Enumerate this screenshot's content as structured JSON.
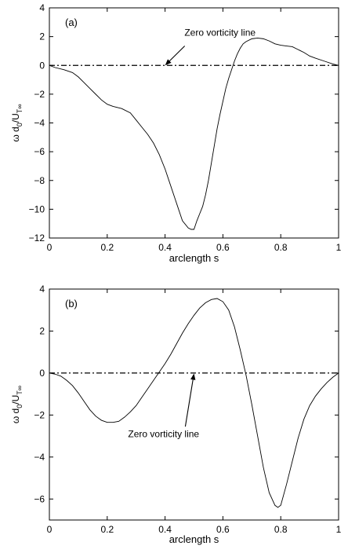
{
  "chart_data": [
    {
      "type": "line",
      "panel_label": "(a)",
      "xlabel": "arclength s",
      "ylabel": {
        "base": "ω d",
        "sub0": "0",
        "slash": "/U",
        "subT": "T∞"
      },
      "xlim": [
        0,
        1
      ],
      "ylim": [
        -12,
        4
      ],
      "xticks": [
        0,
        0.2,
        0.4,
        0.6,
        0.8,
        1
      ],
      "xtick_labels": [
        "0",
        "0.2",
        "0.4",
        "0.6",
        "0.8",
        "1"
      ],
      "yticks": [
        -12,
        -10,
        -8,
        -6,
        -4,
        -2,
        0,
        2,
        4
      ],
      "ytick_labels": [
        "−12",
        "−10",
        "−8",
        "−6",
        "−4",
        "−2",
        "0",
        "2",
        "4"
      ],
      "zero_line_y": 0,
      "annotation": {
        "text": "Zero vorticity line",
        "text_pos": [
          0.59,
          2.05
        ],
        "arrow_from": [
          0.468,
          1.35
        ],
        "arrow_to": [
          0.4,
          0.0
        ]
      },
      "series": [
        {
          "x": [
            0,
            0.02,
            0.05,
            0.08,
            0.1,
            0.12,
            0.14,
            0.16,
            0.18,
            0.2,
            0.22,
            0.25,
            0.28,
            0.3,
            0.32,
            0.34,
            0.36,
            0.38,
            0.4,
            0.42,
            0.44,
            0.46,
            0.48,
            0.49,
            0.5,
            0.51,
            0.52,
            0.53,
            0.54,
            0.55,
            0.56,
            0.57,
            0.58,
            0.59,
            0.6,
            0.61,
            0.62,
            0.63,
            0.64,
            0.65,
            0.66,
            0.67,
            0.68,
            0.7,
            0.72,
            0.74,
            0.76,
            0.78,
            0.8,
            0.82,
            0.84,
            0.86,
            0.88,
            0.9,
            0.92,
            0.95,
            0.98,
            1.0
          ],
          "y": [
            0,
            -0.15,
            -0.3,
            -0.5,
            -0.8,
            -1.2,
            -1.6,
            -2.0,
            -2.4,
            -2.7,
            -2.85,
            -3.0,
            -3.3,
            -3.8,
            -4.3,
            -4.8,
            -5.4,
            -6.2,
            -7.2,
            -8.4,
            -9.6,
            -10.8,
            -11.3,
            -11.4,
            -11.4,
            -10.8,
            -10.3,
            -9.8,
            -9.0,
            -8.0,
            -6.8,
            -5.6,
            -4.4,
            -3.4,
            -2.5,
            -1.6,
            -0.9,
            -0.3,
            0.3,
            0.8,
            1.2,
            1.5,
            1.65,
            1.85,
            1.9,
            1.85,
            1.7,
            1.5,
            1.4,
            1.35,
            1.3,
            1.1,
            0.9,
            0.65,
            0.5,
            0.3,
            0.1,
            0
          ]
        }
      ]
    },
    {
      "type": "line",
      "panel_label": "(b)",
      "xlabel": "arclength s",
      "ylabel": {
        "base": "ω d",
        "sub0": "0",
        "slash": "/U",
        "subT": "T∞"
      },
      "xlim": [
        0,
        1
      ],
      "ylim": [
        -7,
        4
      ],
      "xticks": [
        0,
        0.2,
        0.4,
        0.6,
        0.8,
        1
      ],
      "xtick_labels": [
        "0",
        "0.2",
        "0.4",
        "0.6",
        "0.8",
        "1"
      ],
      "yticks": [
        -6,
        -4,
        -2,
        0,
        2,
        4
      ],
      "ytick_labels": [
        "−6",
        "−4",
        "−2",
        "0",
        "2",
        "4"
      ],
      "zero_line_y": 0,
      "annotation": {
        "text": "Zero vorticity line",
        "text_pos": [
          0.395,
          -3.05
        ],
        "arrow_from": [
          0.47,
          -2.55
        ],
        "arrow_to": [
          0.5,
          -0.02
        ]
      },
      "series": [
        {
          "x": [
            0,
            0.02,
            0.04,
            0.06,
            0.08,
            0.1,
            0.12,
            0.14,
            0.16,
            0.18,
            0.2,
            0.22,
            0.24,
            0.26,
            0.28,
            0.3,
            0.32,
            0.34,
            0.36,
            0.38,
            0.4,
            0.42,
            0.44,
            0.46,
            0.48,
            0.5,
            0.52,
            0.54,
            0.56,
            0.58,
            0.6,
            0.62,
            0.64,
            0.66,
            0.68,
            0.7,
            0.72,
            0.74,
            0.76,
            0.78,
            0.79,
            0.8,
            0.82,
            0.84,
            0.86,
            0.88,
            0.9,
            0.92,
            0.94,
            0.96,
            0.98,
            1.0
          ],
          "y": [
            0,
            -0.05,
            -0.15,
            -0.35,
            -0.6,
            -0.95,
            -1.35,
            -1.75,
            -2.05,
            -2.25,
            -2.35,
            -2.35,
            -2.3,
            -2.1,
            -1.85,
            -1.55,
            -1.15,
            -0.75,
            -0.35,
            0.05,
            0.45,
            0.9,
            1.4,
            1.9,
            2.35,
            2.75,
            3.1,
            3.35,
            3.5,
            3.55,
            3.4,
            3.0,
            2.2,
            1.1,
            -0.1,
            -1.5,
            -3.0,
            -4.5,
            -5.7,
            -6.3,
            -6.4,
            -6.3,
            -5.3,
            -4.2,
            -3.1,
            -2.2,
            -1.55,
            -1.1,
            -0.75,
            -0.45,
            -0.2,
            0
          ]
        }
      ]
    }
  ]
}
